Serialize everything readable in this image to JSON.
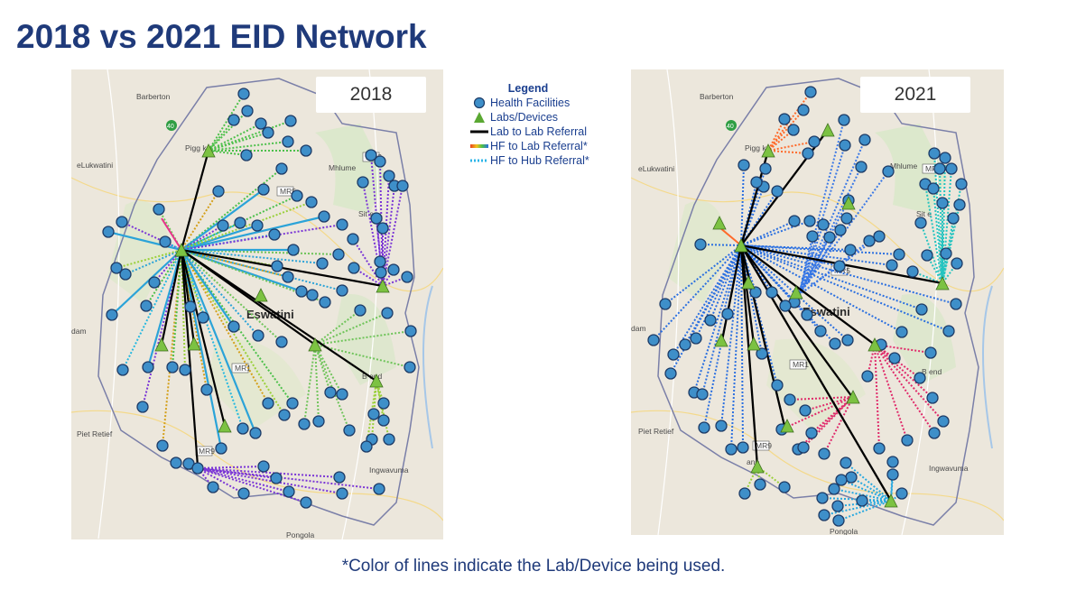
{
  "title": "2018 vs 2021 EID Network",
  "footnote": "*Color of lines indicate the Lab/Device being used.",
  "legend": {
    "title": "Legend",
    "items": [
      {
        "label": "Health Facilities",
        "symbol": "circle-icon",
        "color": "#3e8fc9"
      },
      {
        "label": "Labs/Devices",
        "symbol": "triangle-icon",
        "color": "#5aa832"
      },
      {
        "label": "Lab to Lab Referral",
        "symbol": "solid-line-icon",
        "color": "#000000"
      },
      {
        "label": "HF to Lab Referral*",
        "symbol": "gradient-line-icon",
        "color": "#e8431f"
      },
      {
        "label": "HF to Hub Referral*",
        "symbol": "dotted-line-icon",
        "color": "#2cb5e8"
      }
    ]
  },
  "maps": [
    {
      "year": "2018",
      "places": {
        "barberton": "Barberton",
        "pigg": "Pigg   k",
        "elukwatini": "eLukwatini",
        "mhlume": "Mhlume",
        "siteki": "Sit  e",
        "eswatini": "Eswatini",
        "dam": "dam",
        "bigbend": "B   end",
        "pietretief": "Piet Retief",
        "nhlangano": "   ano",
        "ingwavuma": "Ingwavuma",
        "pongola": "Pongola",
        "r_mr3": "MR3",
        "r_mr5": "MR5",
        "r_mr1": "MR1",
        "r_mr9": "MR9",
        "r_40": "40"
      }
    },
    {
      "year": "2021",
      "places": {
        "barberton": "Barberton",
        "pigg": "Pigg   k",
        "elukwatini": "eLukwatini",
        "mhlume": "Mhlume",
        "siteki": "Sit  e",
        "eswatini": "Eswatini",
        "dam": "dam",
        "bigbend": "B   end",
        "pietretief": "Piet Retief",
        "nhlangano": "   ano",
        "ingwavuma": "Ingwavuma",
        "pongola": "Pongola",
        "r_mr3": "MR3",
        "r_mr5": "MR5",
        "r_mr1": "MR1",
        "r_mr9": "MR9",
        "r_40": "40"
      }
    }
  ],
  "colors": {
    "title": "#1f3a7a",
    "facility_fill": "#3e8fc9",
    "facility_stroke": "#1d3b66",
    "lab_fill": "#7cc242",
    "lab_lab_line": "#000000",
    "border": "#7a7fa8",
    "map_bg": "#ece7dc",
    "park_green": "#d6e8c4"
  }
}
